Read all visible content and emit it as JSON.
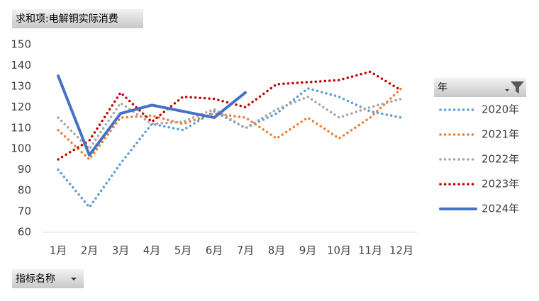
{
  "chart_data": {
    "type": "line",
    "title": "求和项:电解铜实际消费",
    "legend_title": "年",
    "filter_button": "指标名称",
    "categories": [
      "1月",
      "2月",
      "3月",
      "4月",
      "5月",
      "6月",
      "7月",
      "8月",
      "9月",
      "10月",
      "11月",
      "12月"
    ],
    "series": [
      {
        "name": "2020年",
        "color": "#5b9bd5",
        "style": "dotted",
        "values": [
          90,
          72,
          93,
          112,
          109,
          118,
          110,
          117,
          129,
          125,
          118,
          115
        ]
      },
      {
        "name": "2021年",
        "color": "#ed7d31",
        "style": "dotted",
        "values": [
          109,
          95,
          115,
          116,
          112,
          117,
          115,
          105,
          115,
          105,
          115,
          129
        ]
      },
      {
        "name": "2022年",
        "color": "#a5a5a5",
        "style": "dotted",
        "values": [
          115,
          100,
          122,
          112,
          113,
          119,
          110,
          119,
          125,
          115,
          120,
          124
        ]
      },
      {
        "name": "2023年",
        "color": "#c00000",
        "style": "dotted",
        "values": [
          95,
          104,
          127,
          113,
          125,
          124,
          120,
          131,
          132,
          133,
          137,
          128
        ]
      },
      {
        "name": "2024年",
        "color": "#4472c4",
        "style": "solid",
        "values": [
          135,
          97,
          117,
          121,
          118,
          115,
          127,
          null,
          null,
          null,
          null,
          null
        ]
      }
    ],
    "ylim": [
      60,
      150
    ],
    "yticks": [
      60,
      70,
      80,
      90,
      100,
      110,
      120,
      130,
      140,
      150
    ],
    "grid": false
  }
}
